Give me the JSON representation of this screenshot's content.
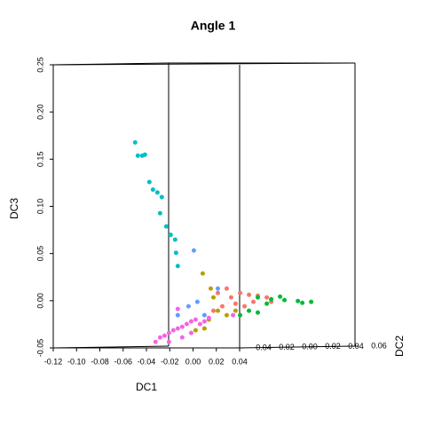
{
  "chart_data": {
    "type": "scatter3d",
    "title": "Angle 1",
    "x_label": "DC1",
    "y_label": "DC3",
    "z_label": "DC2",
    "xlim": [
      -0.12,
      0.04
    ],
    "ylim": [
      -0.05,
      0.25
    ],
    "zlim": [
      -0.04,
      0.06
    ],
    "xticks": [
      -0.12,
      {
        "value": -0.1,
        "label": "-0.10"
      },
      -0.08,
      -0.06,
      -0.04,
      -0.02,
      {
        "value": 0,
        "label": "0.00"
      },
      0.02,
      0.04
    ],
    "yticks": [
      -0.05,
      {
        "value": 0,
        "label": "0.00"
      },
      0.05,
      {
        "value": 0.1,
        "label": "0.10"
      },
      0.15,
      {
        "value": 0.2,
        "label": "0.20"
      },
      0.25
    ],
    "zticks": [
      {
        "value": -0.04,
        "label": "0.04"
      },
      {
        "value": -0.02,
        "label": "0.02"
      },
      {
        "value": 0,
        "label": "0.00"
      },
      0.02,
      0.04,
      0.06
    ],
    "series": [
      {
        "color": "#00BFC4",
        "x": [
          -0.0893,
          -0.087,
          -0.0832,
          -0.0809,
          -0.0771,
          -0.074,
          -0.0702,
          -0.0664,
          -0.0679,
          -0.0626,
          -0.0588,
          -0.055,
          -0.0527,
          -0.0542
        ],
        "y": [
          0.167,
          0.153,
          0.153,
          0.154,
          0.125,
          0.117,
          0.114,
          0.109,
          0.092,
          0.078,
          0.069,
          0.064,
          0.036,
          0.05
        ],
        "z": [
          0,
          0,
          0,
          0,
          0,
          0,
          0,
          0,
          0,
          0,
          0,
          0,
          0,
          0
        ]
      },
      {
        "color": "#F8766D",
        "x": [
          -0.0183,
          -0.0107,
          -0.0069,
          0.0008,
          0.0084,
          0.016,
          0.0237,
          -0.0145,
          -0.0031,
          0.0122,
          0.0275,
          -0.0221,
          0.0046
        ],
        "y": [
          0.0074,
          0.0121,
          0.0027,
          0.0074,
          0.0055,
          0.0046,
          0.0027,
          -0.0067,
          -0.0039,
          -0.002,
          -0.002,
          -0.0114,
          -0.0067
        ],
        "z": [
          0,
          0,
          0,
          0,
          0,
          0,
          0,
          0,
          0,
          0,
          0,
          0,
          0
        ]
      },
      {
        "color": "#00BA38",
        "x": [
          0.016,
          0.0275,
          0.0389,
          0.0504,
          0.0618,
          0.0237,
          0.0351,
          0.0084,
          0.016,
          0.0008,
          0.0542
        ],
        "y": [
          0.0027,
          0.0008,
          -0.0001,
          -0.0011,
          -0.002,
          -0.0039,
          0.0036,
          -0.0114,
          -0.0133,
          -0.0161,
          -0.003
        ],
        "z": [
          0,
          0,
          0,
          0,
          0,
          0,
          0,
          0,
          0,
          0,
          0
        ]
      },
      {
        "color": "#B79F00",
        "x": [
          -0.0313,
          -0.0244,
          -0.0221,
          -0.0183,
          -0.026,
          -0.0107,
          -0.0031,
          -0.0298,
          -0.0374
        ],
        "y": [
          0.0281,
          0.0121,
          0.0027,
          -0.0114,
          -0.0208,
          -0.0161,
          -0.0114,
          -0.0302,
          -0.0321
        ],
        "z": [
          0,
          0,
          0,
          0,
          0,
          0,
          0,
          0,
          0
        ]
      },
      {
        "color": "#619CFF",
        "x": [
          -0.0389,
          -0.0435,
          -0.0359,
          -0.0298,
          -0.0183,
          -0.0527
        ],
        "y": [
          0.0525,
          -0.0067,
          -0.002,
          -0.0161,
          0.0121,
          -0.0161
        ],
        "z": [
          0,
          0,
          0,
          0,
          0,
          0
        ]
      },
      {
        "color": "#F564E3",
        "x": [
          -0.0718,
          -0.0679,
          -0.0641,
          -0.0603,
          -0.0565,
          -0.0527,
          -0.0489,
          -0.045,
          -0.0412,
          -0.0374,
          -0.0336,
          -0.0298,
          -0.026,
          -0.0489,
          -0.0603,
          -0.0412,
          -0.0527,
          -0.0053
        ],
        "y": [
          -0.0444,
          -0.0397,
          -0.0378,
          -0.0349,
          -0.0321,
          -0.0302,
          -0.0284,
          -0.0255,
          -0.0227,
          -0.0208,
          -0.0255,
          -0.0227,
          -0.019,
          -0.0397,
          -0.0444,
          -0.0349,
          -0.0095,
          -0.0161
        ],
        "z": [
          0,
          0,
          0,
          0,
          0,
          0,
          0,
          0,
          0,
          0,
          0,
          0,
          0,
          0,
          0,
          0,
          0,
          0
        ]
      }
    ]
  }
}
